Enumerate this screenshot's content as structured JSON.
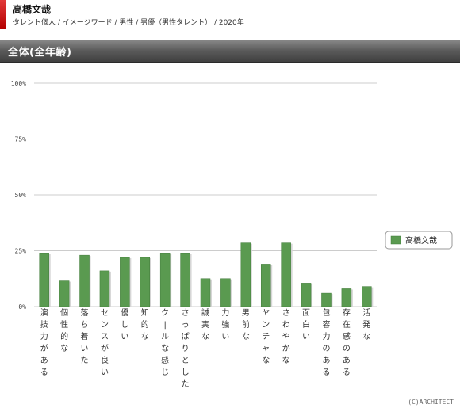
{
  "header": {
    "name": "高橋文哉",
    "breadcrumb": "タレント個人 / イメージワード / 男性 / 男優（男性タレント） / 2020年"
  },
  "section": {
    "title": "全体(全年齢)"
  },
  "footer": {
    "copyright": "(C)ARCHITECT"
  },
  "colors": {
    "bar": "#5a9a50",
    "barEdge": "#3f7a38",
    "grid": "#cccccc"
  },
  "chart_data": {
    "type": "bar",
    "categories": [
      "演技力がある",
      "個性的な",
      "落ち着いた",
      "センスが良い",
      "優しい",
      "知的な",
      "クールな感じ",
      "さっぱりとした",
      "誠実な",
      "力強い",
      "男前な",
      "ヤンチャな",
      "さわやかな",
      "面白い",
      "包容力のある",
      "存在感のある",
      "活発な"
    ],
    "series": [
      {
        "name": "高橋文哉",
        "values": [
          24,
          11.5,
          23,
          16,
          22,
          22,
          24,
          24,
          12.5,
          12.5,
          28.5,
          19,
          28.5,
          10.5,
          6,
          8,
          9
        ]
      }
    ],
    "ylim": [
      0,
      100
    ],
    "yticks": [
      0,
      25,
      50,
      75,
      100
    ],
    "ytick_labels": [
      "0%",
      "25%",
      "50%",
      "75%",
      "100%"
    ],
    "grid": true,
    "legend": "right"
  }
}
